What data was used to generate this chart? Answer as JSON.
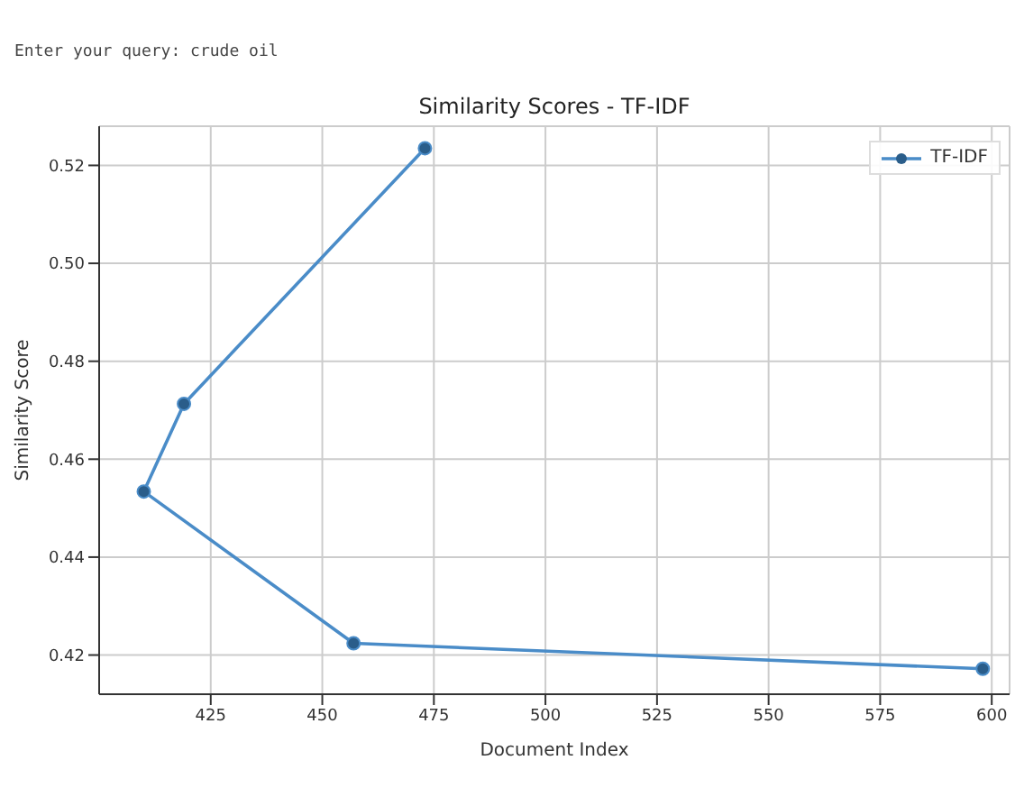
{
  "chart_data": {
    "type": "line",
    "title": "Similarity Scores - TF-IDF",
    "xlabel": "Document Index",
    "ylabel": "Similarity Score",
    "annotations": [
      "Enter your query: crude oil"
    ],
    "x": [
      473,
      419,
      410,
      457,
      598
    ],
    "series": [
      {
        "name": "TF-IDF",
        "color": "#4a8cc8",
        "values": [
          0.5235,
          0.4713,
          0.4534,
          0.4224,
          0.4172
        ]
      }
    ],
    "xlim": [
      400,
      604
    ],
    "xticks": [
      425,
      450,
      475,
      500,
      525,
      550,
      575,
      600
    ],
    "ylim": [
      0.412,
      0.528
    ],
    "yticks": [
      0.42,
      0.44,
      0.46,
      0.48,
      {
        "value": 0.5,
        "label": "0.50"
      },
      0.52
    ],
    "grid": true,
    "legend": "top right",
    "marker": "circle",
    "line_style": "solid"
  }
}
